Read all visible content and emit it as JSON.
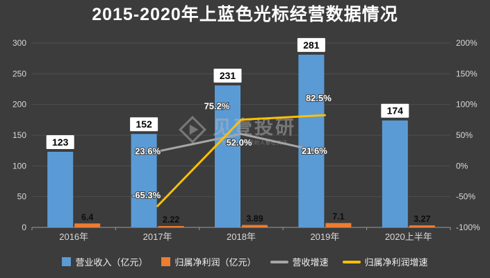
{
  "title": "2015-2020年上蓝色光标经营数据情况",
  "watermark": {
    "name": "见壹投研",
    "tagline": "专注价值投资的人都在关注"
  },
  "chart_data": {
    "type": "combo",
    "background": "#3C3C3C",
    "categories": [
      "2016年",
      "2017年",
      "2018年",
      "2019年",
      "2020上半年"
    ],
    "series": [
      {
        "name": "营业收入（亿元）",
        "type": "bar",
        "axis": "left",
        "color": "#5B9BD5",
        "values": [
          123,
          152,
          231,
          281,
          174
        ],
        "labels": [
          "123",
          "152",
          "231",
          "281",
          "174"
        ]
      },
      {
        "name": "归属净利润（亿元）",
        "type": "bar",
        "axis": "left",
        "color": "#ED7D31",
        "values": [
          6.4,
          2.22,
          3.89,
          7.1,
          3.27
        ],
        "labels": [
          "6.4",
          "2.22",
          "3.89",
          "7.1",
          "3.27"
        ]
      },
      {
        "name": "营收增速",
        "type": "line",
        "axis": "right",
        "color": "#A6A6A6",
        "values": [
          null,
          23.6,
          52.0,
          21.6,
          null
        ],
        "labels": [
          null,
          "23.6%",
          "52.0%",
          "21.6%",
          null
        ],
        "label_offsets": [
          null,
          [
            -14,
            4
          ],
          [
            -3,
            17
          ],
          [
            -15,
            2
          ],
          null
        ]
      },
      {
        "name": "归属净利润增速",
        "type": "line",
        "axis": "right",
        "color": "#FFC000",
        "values": [
          null,
          -65.3,
          75.2,
          82.5,
          null
        ],
        "labels": [
          null,
          "-65.3%",
          "75.2%",
          "82.5%",
          null
        ],
        "label_offsets": [
          null,
          [
            -16,
            -11
          ],
          [
            -35,
            -15
          ],
          [
            -9,
            -20
          ],
          null
        ]
      }
    ],
    "left_axis": {
      "min": 0,
      "max": 300,
      "ticks": [
        0,
        50,
        100,
        150,
        200,
        250,
        300
      ],
      "tick_labels": [
        "0",
        "50",
        "100",
        "150",
        "200",
        "250",
        "300"
      ]
    },
    "right_axis": {
      "min": -100,
      "max": 200,
      "ticks": [
        -100,
        -50,
        0,
        50,
        100,
        150,
        200
      ],
      "tick_labels": [
        "-100%",
        "-50%",
        "0%",
        "50%",
        "100%",
        "150%",
        "200%"
      ]
    },
    "grid": true,
    "legend_position": "bottom"
  }
}
